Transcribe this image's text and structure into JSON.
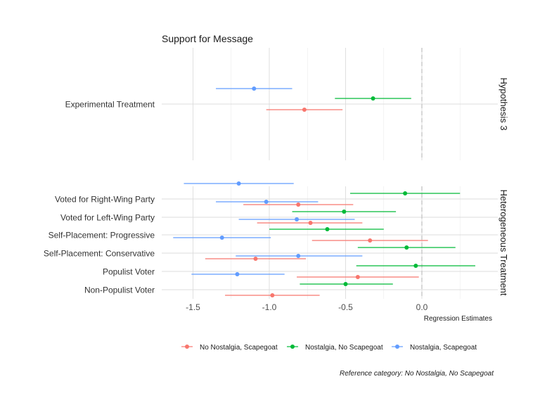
{
  "chart_data": {
    "type": "dot-whisker",
    "title": "Support for Message",
    "xlabel": "Regression Estimates",
    "ylabel": "",
    "xlim": [
      -1.75,
      0.45
    ],
    "xticks": [
      -1.5,
      -1.0,
      -0.5,
      0.0
    ],
    "xtick_labels": [
      "-1.5",
      "-1.0",
      "-0.5",
      "0.0"
    ],
    "reference_line": 0.0,
    "grid": true,
    "legend_position": "bottom",
    "caption": "Reference category: No Nostalgia, No Scapegoat",
    "series": [
      {
        "name": "No Nostalgia, Scapegoat",
        "color": "#F8766D"
      },
      {
        "name": "Nostalgia, No Scapegoat",
        "color": "#00BA38"
      },
      {
        "name": "Nostalgia, Scapegoat",
        "color": "#619CFF"
      }
    ],
    "facets": [
      {
        "strip": "Hypothesis 3",
        "rows": [
          {
            "label": "Experimental Treatment",
            "estimates": [
              {
                "series": 0,
                "est": -0.77,
                "lo": -1.02,
                "hi": -0.52
              },
              {
                "series": 1,
                "est": -0.32,
                "lo": -0.57,
                "hi": -0.07
              },
              {
                "series": 2,
                "est": -1.1,
                "lo": -1.35,
                "hi": -0.85
              }
            ]
          }
        ]
      },
      {
        "strip": "Heterogeneous Treatment",
        "rows": [
          {
            "label": "Voted for Right-Wing Party",
            "estimates": [
              {
                "series": 0,
                "est": -0.81,
                "lo": -1.17,
                "hi": -0.45
              },
              {
                "series": 1,
                "est": -0.11,
                "lo": -0.47,
                "hi": 0.25
              },
              {
                "series": 2,
                "est": -1.2,
                "lo": -1.56,
                "hi": -0.84
              }
            ]
          },
          {
            "label": "Voted for Left-Wing Party",
            "estimates": [
              {
                "series": 0,
                "est": -0.73,
                "lo": -1.08,
                "hi": -0.39
              },
              {
                "series": 1,
                "est": -0.51,
                "lo": -0.85,
                "hi": -0.17
              },
              {
                "series": 2,
                "est": -1.02,
                "lo": -1.35,
                "hi": -0.68
              }
            ]
          },
          {
            "label": "Self-Placement: Progressive",
            "estimates": [
              {
                "series": 0,
                "est": -0.34,
                "lo": -0.72,
                "hi": 0.04
              },
              {
                "series": 1,
                "est": -0.62,
                "lo": -1.0,
                "hi": -0.25
              },
              {
                "series": 2,
                "est": -0.82,
                "lo": -1.2,
                "hi": -0.44
              }
            ]
          },
          {
            "label": "Self-Placement: Conservative",
            "estimates": [
              {
                "series": 0,
                "est": -1.09,
                "lo": -1.42,
                "hi": -0.76
              },
              {
                "series": 1,
                "est": -0.1,
                "lo": -0.42,
                "hi": 0.22
              },
              {
                "series": 2,
                "est": -1.31,
                "lo": -1.63,
                "hi": -0.99
              }
            ]
          },
          {
            "label": "Populist Voter",
            "estimates": [
              {
                "series": 0,
                "est": -0.42,
                "lo": -0.82,
                "hi": -0.02
              },
              {
                "series": 1,
                "est": -0.04,
                "lo": -0.43,
                "hi": 0.35
              },
              {
                "series": 2,
                "est": -0.81,
                "lo": -1.22,
                "hi": -0.39
              }
            ]
          },
          {
            "label": "Non-Populist Voter",
            "estimates": [
              {
                "series": 0,
                "est": -0.98,
                "lo": -1.29,
                "hi": -0.67
              },
              {
                "series": 1,
                "est": -0.5,
                "lo": -0.8,
                "hi": -0.19
              },
              {
                "series": 2,
                "est": -1.21,
                "lo": -1.51,
                "hi": -0.9
              }
            ]
          }
        ]
      }
    ]
  }
}
